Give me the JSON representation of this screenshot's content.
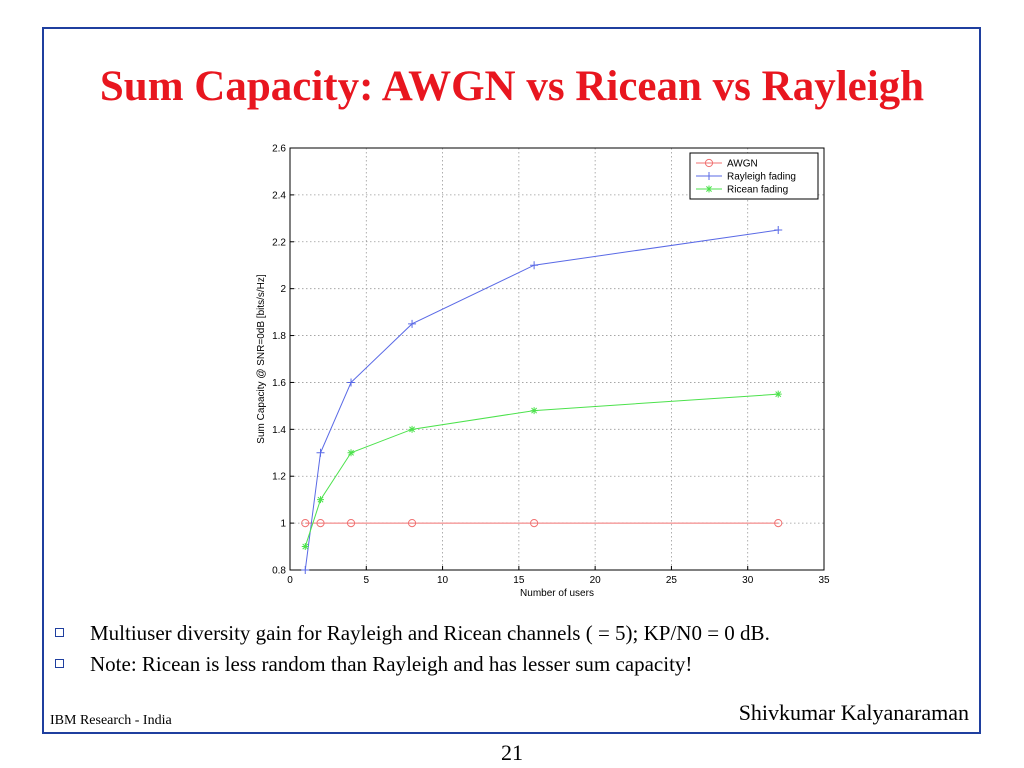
{
  "slide": {
    "title": "Sum Capacity: AWGN vs Ricean vs Rayleigh",
    "bullets": [
      "Multiuser diversity gain for Rayleigh and Ricean channels ( = 5); KP/N0 = 0 dB.",
      "Note: Ricean is less random than Rayleigh and has lesser sum capacity!"
    ],
    "footer_left": "IBM Research - India",
    "footer_right": "Shivkumar Kalyanaraman",
    "page_number": "21",
    "colors": {
      "title": "#e8161f",
      "frame": "#1f3f9f"
    }
  },
  "chart_data": {
    "type": "line",
    "title": "",
    "xlabel": "Number of users",
    "ylabel": "Sum Capacity @ SNR=0dB [bits/s/Hz]",
    "xlim": [
      0,
      35
    ],
    "ylim": [
      0.8,
      2.6
    ],
    "xticks": [
      0,
      5,
      10,
      15,
      20,
      25,
      30,
      35
    ],
    "yticks": [
      0.8,
      1,
      1.2,
      1.4,
      1.6,
      1.8,
      2,
      2.2,
      2.4,
      2.6
    ],
    "grid": true,
    "legend_position": "top-right",
    "x": [
      1,
      2,
      4,
      8,
      16,
      32
    ],
    "series": [
      {
        "name": "AWGN",
        "marker": "circle",
        "color": "#f07070",
        "values": [
          1.0,
          1.0,
          1.0,
          1.0,
          1.0,
          1.0
        ]
      },
      {
        "name": "Rayleigh fading",
        "marker": "plus",
        "color": "#5a6ae6",
        "values": [
          0.8,
          1.3,
          1.6,
          1.85,
          2.1,
          2.25
        ]
      },
      {
        "name": "Ricean fading",
        "marker": "star",
        "color": "#4ce24c",
        "values": [
          0.9,
          1.1,
          1.3,
          1.4,
          1.48,
          1.55
        ]
      }
    ]
  }
}
